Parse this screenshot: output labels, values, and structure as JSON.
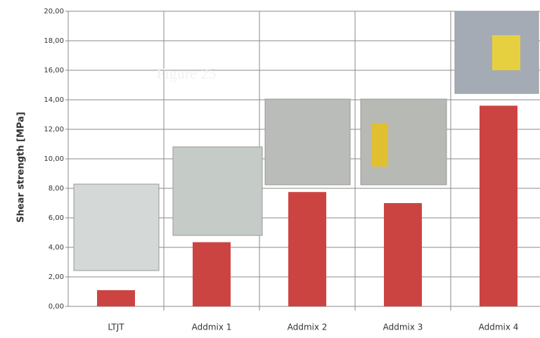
{
  "chart_data": {
    "type": "bar",
    "y_label": "Shear strength [MPa]",
    "annotation": "Figure 25",
    "categories": [
      "LTJT",
      "Addmix 1",
      "Addmix 2",
      "Addmix 3",
      "Addmix 4"
    ],
    "values": [
      1.1,
      4.35,
      7.75,
      7.0,
      13.6
    ],
    "color": "#cc4442",
    "ylim": [
      0,
      20
    ],
    "yticks": [
      {
        "value": 0,
        "label": "0,00"
      },
      {
        "value": 2,
        "label": "2,00"
      },
      {
        "value": 4,
        "label": "4,00"
      },
      {
        "value": 6,
        "label": "6,00"
      },
      {
        "value": 8,
        "label": "8,00"
      },
      {
        "value": 10,
        "label": "10,00"
      },
      {
        "value": 12,
        "label": "12,00"
      },
      {
        "value": 14,
        "label": "14,00"
      },
      {
        "value": 16,
        "label": "16,00"
      },
      {
        "value": 18,
        "label": "18,00"
      },
      {
        "value": 20,
        "label": "20,00"
      }
    ],
    "grid": true
  }
}
